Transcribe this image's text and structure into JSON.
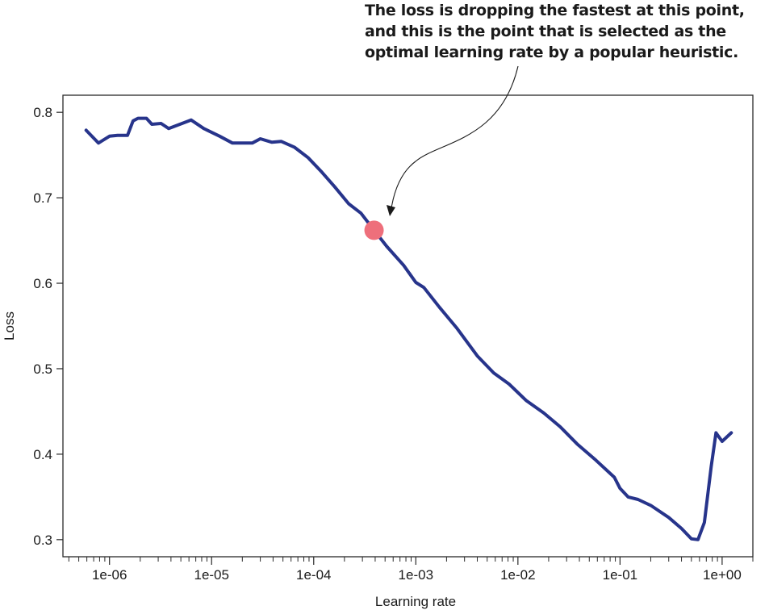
{
  "annotation": {
    "lines": [
      "The loss is dropping the fastest at this point,",
      "and this is the point that is selected as the",
      "optimal learning rate by a popular heuristic."
    ]
  },
  "chart_data": {
    "type": "line",
    "title": "",
    "xlabel": "Learning rate",
    "ylabel": "Loss",
    "xscale": "log",
    "xlim": [
      3.5e-07,
      2.0
    ],
    "ylim": [
      0.28,
      0.82
    ],
    "grid": false,
    "x_tick_labels": [
      "1e-06",
      "1e-05",
      "1e-04",
      "1e-03",
      "1e-02",
      "1e-01",
      "1e+00"
    ],
    "x_tick_values": [
      1e-06,
      1e-05,
      0.0001,
      0.001,
      0.01,
      0.1,
      1
    ],
    "y_tick_labels": [
      "0.3",
      "0.4",
      "0.5",
      "0.6",
      "0.7",
      "0.8"
    ],
    "y_tick_values": [
      0.3,
      0.4,
      0.5,
      0.6,
      0.7,
      0.8
    ],
    "series": [
      {
        "color": "#27348b",
        "x": [
          5.9e-07,
          7.8e-07,
          1e-06,
          1.2e-06,
          1.5e-06,
          1.7e-06,
          1.9e-06,
          2.3e-06,
          2.6e-06,
          3.2e-06,
          3.8e-06,
          6.3e-06,
          8.4e-06,
          1.2e-05,
          1.6e-05,
          2.5e-05,
          3e-05,
          3.9e-05,
          4.8e-05,
          6.5e-05,
          8.8e-05,
          0.00012,
          0.00016,
          0.00022,
          0.00029,
          0.00039,
          0.00052,
          0.00076,
          0.001,
          0.0012,
          0.0017,
          0.0025,
          0.004,
          0.0058,
          0.0082,
          0.012,
          0.018,
          0.026,
          0.038,
          0.058,
          0.088,
          0.1,
          0.12,
          0.15,
          0.2,
          0.3,
          0.4,
          0.5,
          0.58,
          0.67,
          0.78,
          0.87,
          1.0,
          1.23
        ],
        "y": [
          0.779,
          0.764,
          0.772,
          0.773,
          0.773,
          0.79,
          0.793,
          0.793,
          0.786,
          0.787,
          0.781,
          0.791,
          0.781,
          0.772,
          0.764,
          0.764,
          0.769,
          0.765,
          0.766,
          0.759,
          0.747,
          0.73,
          0.713,
          0.693,
          0.682,
          0.662,
          0.643,
          0.621,
          0.601,
          0.595,
          0.572,
          0.548,
          0.515,
          0.495,
          0.482,
          0.463,
          0.448,
          0.432,
          0.412,
          0.393,
          0.373,
          0.36,
          0.35,
          0.347,
          0.34,
          0.326,
          0.313,
          0.301,
          0.3,
          0.32,
          0.385,
          0.425,
          0.415,
          0.425
        ]
      }
    ],
    "highlight_point": {
      "x": 0.00039,
      "y": 0.662,
      "color": "#ee6f7b"
    }
  }
}
